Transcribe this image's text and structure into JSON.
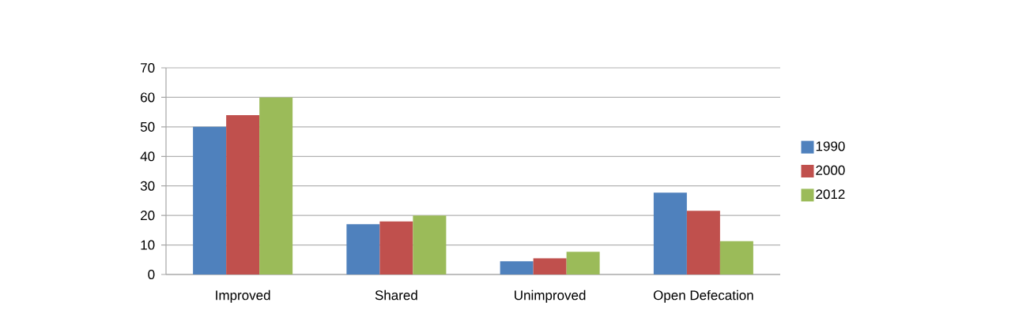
{
  "chart_data": {
    "type": "bar",
    "categories": [
      "Improved",
      "Shared",
      "Unimproved",
      "Open Defecation"
    ],
    "series": [
      {
        "name": "1990",
        "color": "#4f81bd",
        "values": [
          50,
          17,
          4.5,
          27.7
        ]
      },
      {
        "name": "2000",
        "color": "#c0504d",
        "values": [
          54,
          18,
          5.5,
          21.6
        ]
      },
      {
        "name": "2012",
        "color": "#9bbb59",
        "values": [
          60,
          20,
          7.7,
          11.3
        ]
      }
    ],
    "ylim": [
      0,
      70
    ],
    "yticks": [
      0,
      10,
      20,
      30,
      40,
      50,
      60,
      70
    ],
    "grid": "y",
    "legend": "right"
  }
}
